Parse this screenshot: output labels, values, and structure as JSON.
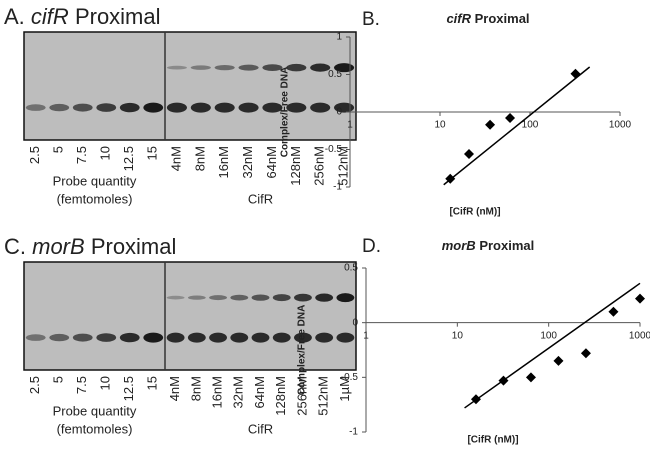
{
  "gels": [
    {
      "panel_label": "A.",
      "gene": "cifR",
      "title_rest": "Proximal",
      "probe_lanes": [
        "2.5",
        "5",
        "7.5",
        "10",
        "12.5",
        "15"
      ],
      "protein_lanes": [
        "4nM",
        "8nM",
        "16nM",
        "32nM",
        "64nM",
        "128nM",
        "256nM",
        "512nM"
      ],
      "probe_caption": [
        "Probe quantity",
        "(femtomoles)"
      ],
      "protein_caption": "CifR"
    },
    {
      "panel_label": "C.",
      "gene": "morB",
      "title_rest": "Proximal",
      "probe_lanes": [
        "2.5",
        "5",
        "7.5",
        "10",
        "12.5",
        "15"
      ],
      "protein_lanes": [
        "4nM",
        "8nM",
        "16nM",
        "32nM",
        "64nM",
        "128nM",
        "256nM",
        "512nM",
        "1µM"
      ],
      "probe_caption": [
        "Probe quantity",
        "(femtomoles)"
      ],
      "protein_caption": "CifR"
    }
  ],
  "chart_data": [
    {
      "type": "scatter",
      "panel_label": "B.",
      "title_gene": "cifR",
      "title_rest": "Proximal",
      "xlabel": "[CifR (nM)]",
      "ylabel": "Complex/Free DNA",
      "xscale": "log",
      "marker": "diamond",
      "color": "#000000",
      "x": [
        13,
        21,
        36,
        60,
        320
      ],
      "values": [
        -0.89,
        -0.56,
        -0.17,
        -0.08,
        0.51
      ],
      "trendline": {
        "x": [
          11,
          460
        ],
        "y": [
          -0.97,
          0.6
        ]
      },
      "xlim": [
        1,
        1000
      ],
      "xticks": [
        1,
        10,
        100,
        1000
      ],
      "ylim": [
        -1,
        1
      ],
      "yticks": [
        -1,
        -0.5,
        0,
        0.5,
        1
      ]
    },
    {
      "type": "scatter",
      "panel_label": "D.",
      "title_gene": "morB",
      "title_rest": "Proximal",
      "xlabel": "[CifR (nM)]",
      "ylabel": "Complex/Free DNA",
      "xscale": "log",
      "marker": "diamond",
      "color": "#000000",
      "x": [
        16,
        32,
        64,
        128,
        256,
        512,
        1000
      ],
      "values": [
        -0.7,
        -0.53,
        -0.5,
        -0.35,
        -0.28,
        0.1,
        0.22
      ],
      "trendline": {
        "x": [
          12,
          1000
        ],
        "y": [
          -0.78,
          0.36
        ]
      },
      "xlim": [
        1,
        1000
      ],
      "xticks": [
        1,
        10,
        100,
        1000
      ],
      "ylim": [
        -1,
        0.5
      ],
      "yticks": [
        -1,
        -0.5,
        0,
        0.5
      ]
    }
  ]
}
